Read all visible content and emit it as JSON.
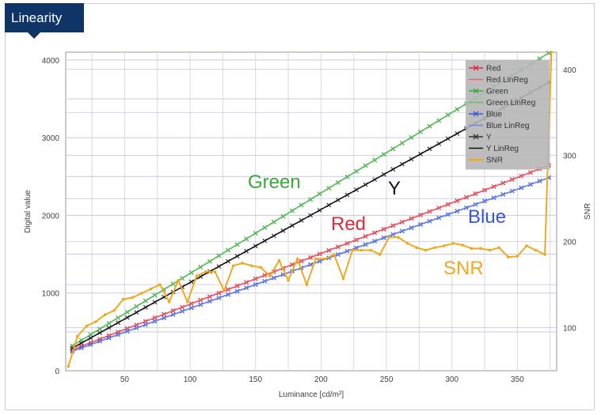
{
  "window": {
    "title": "Linearity"
  },
  "chart_data": {
    "type": "line",
    "xlabel": "Luminance [cd/m²]",
    "ylabel": "Digital value",
    "y2label": "SNR",
    "xlim": [
      5,
      380
    ],
    "ylim": [
      0,
      4100
    ],
    "y2lim": [
      50,
      420
    ],
    "x_ticks": [
      50,
      100,
      150,
      200,
      250,
      300,
      350
    ],
    "y_ticks": [
      0,
      1000,
      2000,
      3000,
      4000
    ],
    "y2_ticks": [
      100,
      200,
      300,
      400
    ],
    "grid": true,
    "legend_position": "top-right",
    "shaded_regions": [
      [
        5,
        45
      ],
      [
        342,
        380
      ]
    ],
    "series": [
      {
        "name": "Red",
        "axis": "left",
        "color": "#e0283a",
        "x": [
          10,
          375
        ],
        "values": [
          270,
          2650
        ]
      },
      {
        "name": "Red LinReg",
        "axis": "left",
        "color": "#f06070",
        "x": [
          10,
          375
        ],
        "values": [
          270,
          2650
        ]
      },
      {
        "name": "Green",
        "axis": "left",
        "color": "#3aa83a",
        "x": [
          10,
          375
        ],
        "values": [
          320,
          4100
        ]
      },
      {
        "name": "Green LinReg",
        "axis": "left",
        "color": "#60c060",
        "x": [
          10,
          375
        ],
        "values": [
          320,
          4100
        ]
      },
      {
        "name": "Blue",
        "axis": "left",
        "color": "#3656d8",
        "x": [
          10,
          375
        ],
        "values": [
          250,
          2490
        ]
      },
      {
        "name": "Blue LinReg",
        "axis": "left",
        "color": "#6f86e6",
        "x": [
          10,
          375
        ],
        "values": [
          250,
          2490
        ]
      },
      {
        "name": "Y",
        "axis": "left",
        "color": "#333333",
        "x": [
          10,
          375
        ],
        "values": [
          290,
          3720
        ]
      },
      {
        "name": "Y LinReg",
        "axis": "left",
        "color": "#111111",
        "x": [
          10,
          375
        ],
        "values": [
          290,
          3720
        ]
      },
      {
        "name": "SNR",
        "axis": "right",
        "color": "#f0a820",
        "x": [
          7,
          14,
          21,
          28,
          35,
          42,
          49,
          56,
          63,
          70,
          77,
          84,
          91,
          98,
          105,
          112,
          119,
          126,
          133,
          140,
          147,
          154,
          161,
          168,
          175,
          182,
          189,
          196,
          203,
          210,
          217,
          224,
          231,
          238,
          245,
          252,
          259,
          266,
          273,
          280,
          287,
          294,
          301,
          308,
          315,
          322,
          329,
          336,
          343,
          350,
          357,
          364,
          371,
          376
        ],
        "values": [
          55,
          90,
          102,
          107,
          115,
          120,
          133,
          135,
          140,
          145,
          150,
          130,
          155,
          130,
          160,
          165,
          165,
          143,
          172,
          175,
          172,
          170,
          160,
          178,
          155,
          180,
          150,
          180,
          180,
          185,
          157,
          190,
          190,
          190,
          185,
          205,
          205,
          198,
          193,
          190,
          193,
          195,
          198,
          196,
          192,
          192,
          190,
          193,
          182,
          183,
          195,
          190,
          185,
          420
        ]
      }
    ],
    "annotations": [
      {
        "text": "Green",
        "color": "#3aa83a"
      },
      {
        "text": "Y",
        "color": "#111111"
      },
      {
        "text": "Red",
        "color": "#e0283a"
      },
      {
        "text": "Blue",
        "color": "#3656d8"
      },
      {
        "text": "SNR",
        "color": "#f0a820"
      }
    ]
  }
}
